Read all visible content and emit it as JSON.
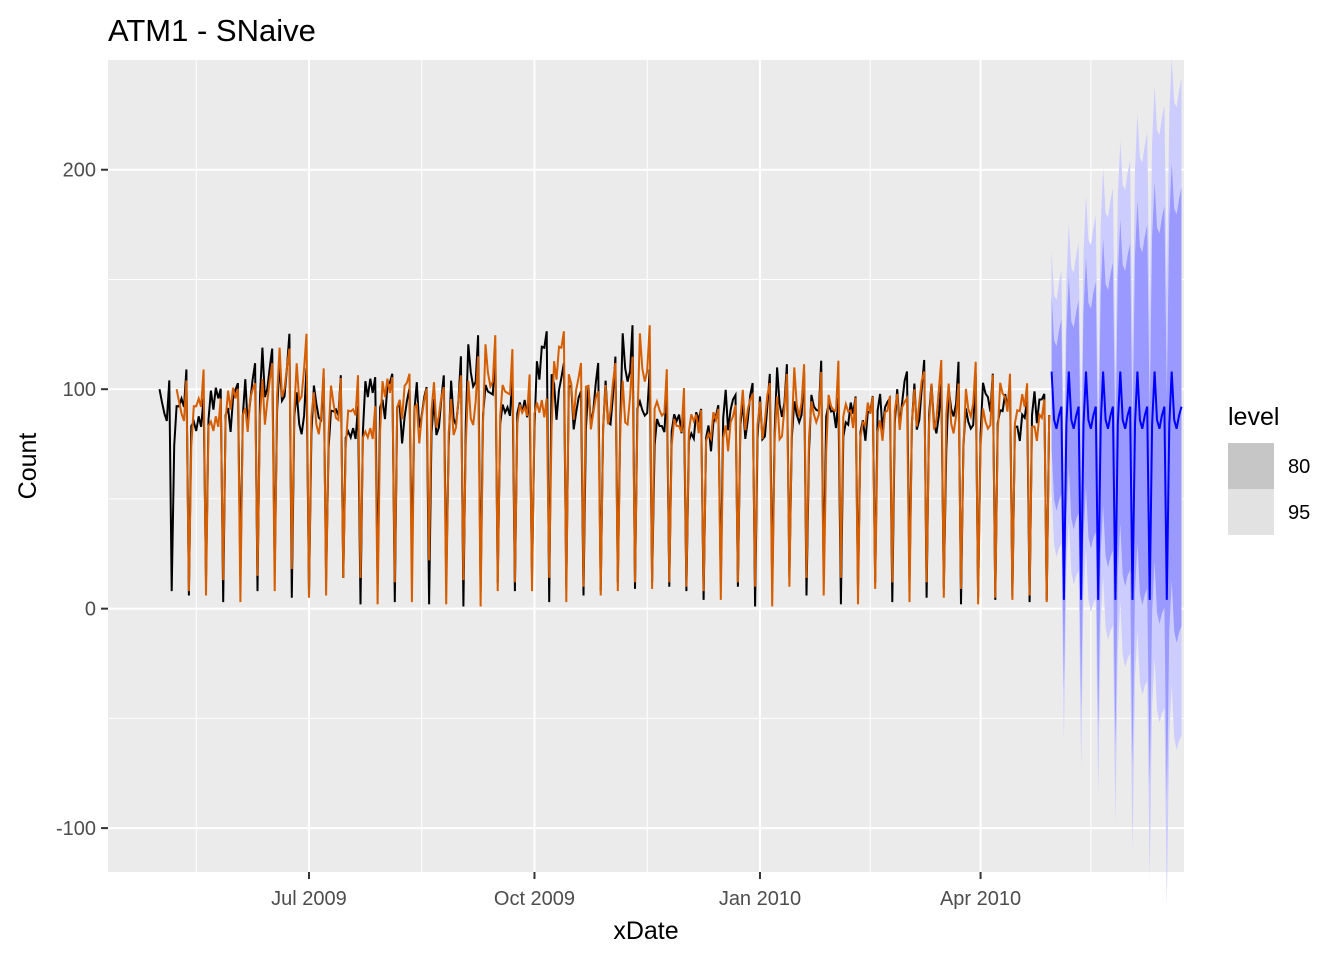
{
  "chart_data": {
    "type": "line",
    "title": "ATM1 - SNaive",
    "xlabel": "xDate",
    "ylabel": "Count",
    "xlim": [
      "2009-04-10",
      "2010-06-23"
    ],
    "ylim": [
      -120,
      250
    ],
    "x_ticks": [
      {
        "date": "2009-07-01",
        "label": "Jul 2009"
      },
      {
        "date": "2009-10-01",
        "label": "Oct 2009"
      },
      {
        "date": "2010-01-01",
        "label": "Jan 2010"
      },
      {
        "date": "2010-04-01",
        "label": "Apr 2010"
      }
    ],
    "y_ticks": [
      -100,
      0,
      100,
      200
    ],
    "grid": true,
    "legend": {
      "title": "level",
      "position": "right",
      "items": [
        {
          "label": "80",
          "color": "#c6c6c6"
        },
        {
          "label": "95",
          "color": "#e2e2e2"
        }
      ]
    },
    "colors": {
      "observed": "#000000",
      "fitted": "#d55e00",
      "forecast": "#0000ff",
      "band80": "#9999ff",
      "band95": "#ccccff",
      "panel": "#ebebeb",
      "grid": "#ffffff"
    },
    "series": [
      {
        "role": "observed",
        "start": "2009-05-01",
        "weekly_pattern": [
          96,
          85,
          89,
          92,
          104,
          8,
          82
        ],
        "week_scale": [
          1.0,
          1.02,
          0.97,
          1.05,
          1.0,
          1.1,
          1.15,
          1.12,
          1.0,
          1.0,
          0.98,
          0.92,
          1.1,
          1.05,
          1.0,
          1.0,
          0.95,
          1.05,
          1.18,
          1.08,
          1.04,
          1.0,
          1.24,
          1.12,
          1.0,
          1.02,
          1.05,
          1.22,
          0.98,
          0.96,
          0.94,
          0.9,
          0.94,
          1.0,
          0.95,
          0.98,
          1.05,
          0.96,
          1.06,
          0.98,
          0.95,
          0.98,
          1.0,
          1.02,
          1.05,
          0.97,
          1.0,
          0.98,
          1.07,
          1.0,
          0.96,
          1.03
        ],
        "low_values": [
          8,
          6,
          13,
          3,
          15,
          8,
          18,
          5,
          6,
          14,
          14,
          2,
          12,
          3,
          22,
          2,
          13,
          1,
          8,
          12,
          8,
          14,
          3,
          10,
          6,
          8,
          12,
          9,
          12,
          10,
          8,
          4,
          12,
          10,
          1,
          10,
          14,
          6,
          14,
          2,
          9,
          12,
          3,
          12,
          5,
          9,
          2,
          5,
          4,
          6,
          3,
          4
        ]
      },
      {
        "role": "fitted",
        "start": "2009-05-08",
        "lag_days": 7
      },
      {
        "role": "forecast",
        "start": "2010-04-30",
        "end": "2010-06-22",
        "weekly_pattern": [
          108,
          86,
          82,
          88,
          92,
          4,
          84
        ],
        "band80_width_start": 35,
        "band80_width_end": 100,
        "band95_width_start": 55,
        "band95_width_end": 150
      }
    ]
  }
}
